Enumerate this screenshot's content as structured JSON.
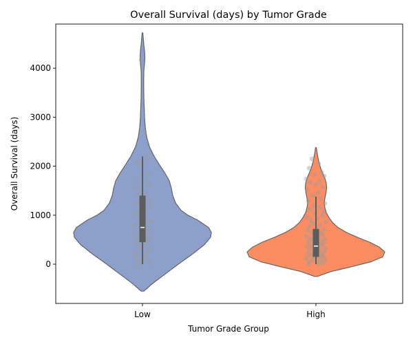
{
  "chart_data": {
    "type": "violin",
    "title": "Overall Survival (days) by Tumor Grade",
    "xlabel": "Tumor Grade Group",
    "ylabel": "Overall Survival (days)",
    "categories": [
      "Low",
      "High"
    ],
    "ylim": [
      -800,
      4900
    ],
    "yticks": [
      0,
      1000,
      2000,
      3000,
      4000
    ],
    "grid": false,
    "colors": {
      "Low": "#8da0cb",
      "High": "#fc8d62",
      "points": "#9b9b9b",
      "box": "#5c5c5c",
      "outline": "#636363"
    },
    "violins": [
      {
        "group": "Low",
        "kde_min": -550,
        "kde_max": 4720,
        "kde": [
          [
            -550,
            0.02
          ],
          [
            -400,
            0.14
          ],
          [
            -200,
            0.33
          ],
          [
            0,
            0.52
          ],
          [
            200,
            0.72
          ],
          [
            400,
            0.9
          ],
          [
            550,
            0.99
          ],
          [
            650,
            1.0
          ],
          [
            750,
            0.96
          ],
          [
            900,
            0.8
          ],
          [
            1000,
            0.66
          ],
          [
            1100,
            0.56
          ],
          [
            1250,
            0.48
          ],
          [
            1400,
            0.44
          ],
          [
            1550,
            0.42
          ],
          [
            1700,
            0.39
          ],
          [
            1850,
            0.33
          ],
          [
            2000,
            0.26
          ],
          [
            2200,
            0.17
          ],
          [
            2400,
            0.1
          ],
          [
            2600,
            0.06
          ],
          [
            2800,
            0.04
          ],
          [
            3000,
            0.03
          ],
          [
            3200,
            0.025
          ],
          [
            3400,
            0.02
          ],
          [
            3600,
            0.018
          ],
          [
            3800,
            0.018
          ],
          [
            3950,
            0.02
          ],
          [
            4100,
            0.03
          ],
          [
            4200,
            0.035
          ],
          [
            4350,
            0.03
          ],
          [
            4500,
            0.018
          ],
          [
            4720,
            0.005
          ]
        ],
        "quartiles": [
          450,
          750,
          1400
        ],
        "whiskers": [
          0,
          2200
        ],
        "points": [
          [
            0.03,
            2700
          ],
          [
            -0.02,
            4170
          ],
          [
            0.07,
            2190
          ],
          [
            0.05,
            2170
          ],
          [
            -0.09,
            2100
          ],
          [
            -0.04,
            2050
          ],
          [
            0.02,
            2010
          ],
          [
            -0.01,
            1840
          ],
          [
            0.08,
            1830
          ],
          [
            -0.06,
            1720
          ],
          [
            0.06,
            1660
          ],
          [
            0.1,
            1600
          ],
          [
            -0.12,
            1560
          ],
          [
            -0.03,
            1520
          ],
          [
            0.04,
            1460
          ],
          [
            -0.08,
            1420
          ],
          [
            0.0,
            1380
          ],
          [
            0.07,
            1350
          ],
          [
            -0.05,
            1300
          ],
          [
            0.11,
            1260
          ],
          [
            -0.1,
            1240
          ],
          [
            0.02,
            1210
          ],
          [
            -0.02,
            1170
          ],
          [
            0.09,
            1140
          ],
          [
            -0.07,
            1100
          ],
          [
            0.05,
            1060
          ],
          [
            -0.11,
            1020
          ],
          [
            0.01,
            980
          ],
          [
            -0.04,
            940
          ],
          [
            0.08,
            900
          ],
          [
            0.12,
            860
          ],
          [
            -0.09,
            820
          ],
          [
            0.03,
            780
          ],
          [
            -0.13,
            750
          ],
          [
            0.06,
            730
          ],
          [
            -0.01,
            700
          ],
          [
            0.1,
            680
          ],
          [
            -0.06,
            650
          ],
          [
            0.04,
            620
          ],
          [
            -0.12,
            600
          ],
          [
            0.0,
            570
          ],
          [
            0.07,
            540
          ],
          [
            -0.08,
            520
          ],
          [
            0.11,
            500
          ],
          [
            -0.03,
            470
          ],
          [
            0.05,
            450
          ],
          [
            -0.1,
            420
          ],
          [
            0.02,
            400
          ],
          [
            -0.05,
            370
          ],
          [
            0.09,
            330
          ],
          [
            -0.02,
            300
          ],
          [
            0.06,
            260
          ],
          [
            -0.09,
            210
          ],
          [
            0.03,
            180
          ],
          [
            -0.12,
            150
          ],
          [
            0.08,
            120
          ],
          [
            -0.04,
            80
          ],
          [
            0.01,
            40
          ],
          [
            0.1,
            10
          ],
          [
            -0.07,
            0
          ]
        ]
      },
      {
        "group": "High",
        "kde_min": -250,
        "kde_max": 2380,
        "kde": [
          [
            -250,
            0.02
          ],
          [
            -150,
            0.22
          ],
          [
            -50,
            0.52
          ],
          [
            50,
            0.8
          ],
          [
            150,
            0.97
          ],
          [
            250,
            1.0
          ],
          [
            350,
            0.92
          ],
          [
            450,
            0.78
          ],
          [
            550,
            0.6
          ],
          [
            650,
            0.44
          ],
          [
            750,
            0.32
          ],
          [
            850,
            0.24
          ],
          [
            950,
            0.19
          ],
          [
            1050,
            0.15
          ],
          [
            1150,
            0.13
          ],
          [
            1250,
            0.12
          ],
          [
            1350,
            0.13
          ],
          [
            1450,
            0.145
          ],
          [
            1550,
            0.155
          ],
          [
            1650,
            0.15
          ],
          [
            1750,
            0.13
          ],
          [
            1850,
            0.1
          ],
          [
            1950,
            0.07
          ],
          [
            2100,
            0.04
          ],
          [
            2250,
            0.02
          ],
          [
            2380,
            0.005
          ]
        ],
        "quartiles": [
          150,
          370,
          720
        ],
        "whiskers": [
          0,
          1380
        ],
        "points": [
          [
            -0.06,
            2150
          ],
          [
            0.04,
            2060
          ],
          [
            -0.1,
            1960
          ],
          [
            0.08,
            1880
          ],
          [
            -0.02,
            1830
          ],
          [
            0.12,
            1800
          ],
          [
            -0.14,
            1740
          ],
          [
            0.06,
            1700
          ],
          [
            -0.08,
            1670
          ],
          [
            0.0,
            1620
          ],
          [
            0.1,
            1570
          ],
          [
            -0.12,
            1510
          ],
          [
            0.03,
            1460
          ],
          [
            -0.05,
            1400
          ],
          [
            0.07,
            1340
          ],
          [
            -0.11,
            1290
          ],
          [
            0.13,
            1240
          ],
          [
            -0.03,
            1200
          ],
          [
            0.05,
            1160
          ],
          [
            -0.09,
            1120
          ],
          [
            0.11,
            1080
          ],
          [
            -0.01,
            1040
          ],
          [
            0.09,
            1000
          ],
          [
            -0.13,
            960
          ],
          [
            0.02,
            930
          ],
          [
            -0.07,
            890
          ],
          [
            0.14,
            860
          ],
          [
            -0.04,
            830
          ],
          [
            0.06,
            800
          ],
          [
            -0.1,
            770
          ],
          [
            0.01,
            740
          ],
          [
            0.12,
            710
          ],
          [
            -0.12,
            690
          ],
          [
            0.04,
            670
          ],
          [
            -0.06,
            650
          ],
          [
            0.08,
            630
          ],
          [
            -0.02,
            610
          ],
          [
            0.1,
            590
          ],
          [
            -0.14,
            570
          ],
          [
            0.03,
            550
          ],
          [
            -0.08,
            530
          ],
          [
            0.13,
            510
          ],
          [
            -0.05,
            495
          ],
          [
            0.07,
            480
          ],
          [
            -0.11,
            465
          ],
          [
            0.0,
            450
          ],
          [
            0.11,
            435
          ],
          [
            -0.03,
            420
          ],
          [
            0.05,
            405
          ],
          [
            -0.09,
            390
          ],
          [
            0.09,
            375
          ],
          [
            -0.13,
            360
          ],
          [
            0.02,
            345
          ],
          [
            -0.06,
            330
          ],
          [
            0.14,
            315
          ],
          [
            -0.01,
            300
          ],
          [
            0.06,
            285
          ],
          [
            -0.1,
            270
          ],
          [
            0.12,
            255
          ],
          [
            -0.04,
            240
          ],
          [
            0.03,
            225
          ],
          [
            -0.12,
            210
          ],
          [
            0.08,
            195
          ],
          [
            -0.07,
            180
          ],
          [
            0.1,
            165
          ],
          [
            -0.02,
            150
          ],
          [
            0.04,
            135
          ],
          [
            -0.14,
            120
          ],
          [
            0.13,
            105
          ],
          [
            -0.05,
            90
          ],
          [
            0.07,
            75
          ],
          [
            -0.09,
            60
          ],
          [
            0.01,
            45
          ],
          [
            0.11,
            30
          ],
          [
            -0.11,
            15
          ],
          [
            0.05,
            5
          ]
        ]
      }
    ]
  }
}
